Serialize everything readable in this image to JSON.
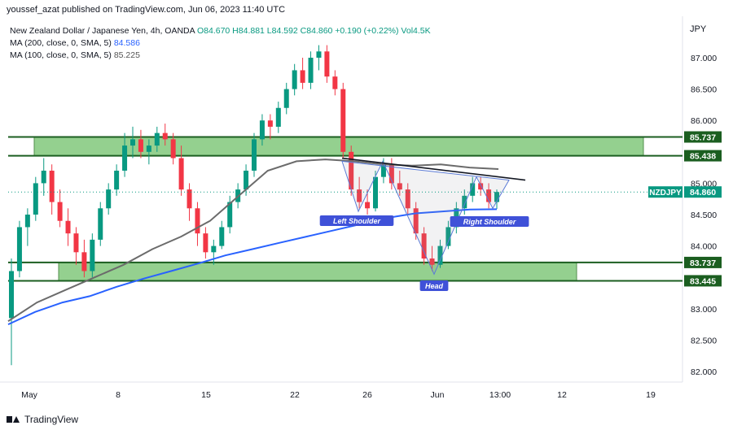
{
  "header": {
    "publisher_line": "youssef_azat published on TradingView.com, Jun 06, 2023 11:40 UTC"
  },
  "legend": {
    "symbol_line_prefix": "New Zealand Dollar / Japanese Yen, 4h, OANDA",
    "ohlc": "O84.670 H84.881 L84.592 C84.860 +0.190 (+0.22%) Vol4.5K",
    "ma200_label": "MA (200, close, 0, SMA, 5)",
    "ma200_value": "84.586",
    "ma100_label": "MA (100, close, 0, SMA, 5)",
    "ma100_value": "85.225"
  },
  "currency_label": "JPY",
  "footer": {
    "brand": "TradingView"
  },
  "chart_data": {
    "type": "candlestick",
    "ylim": [
      82.0,
      87.2
    ],
    "yticks": [
      "87.000",
      "86.500",
      "86.000",
      "85.000",
      "84.500",
      "84.000",
      "83.000",
      "82.500",
      "82.000"
    ],
    "xticks": [
      "May",
      "8",
      "15",
      "22",
      "26",
      "Jun",
      "13:00",
      "12",
      "19"
    ],
    "price_tags": [
      {
        "label": "85.737",
        "value": 85.737,
        "color": "#1b5e20"
      },
      {
        "label": "85.438",
        "value": 85.438,
        "color": "#1b5e20"
      },
      {
        "label": "84.860",
        "value": 84.86,
        "color": "#089981",
        "symbol": "NZDJPY"
      },
      {
        "label": "83.737",
        "value": 83.737,
        "color": "#1b5e20"
      },
      {
        "label": "83.445",
        "value": 83.445,
        "color": "#1b5e20"
      }
    ],
    "zones": [
      {
        "low": 85.438,
        "high": 85.737,
        "x_from": "May 3",
        "x_to": "Jun 20"
      },
      {
        "low": 83.445,
        "high": 83.737,
        "x_from": "May 5",
        "x_to": "Jun 13"
      }
    ],
    "pattern_labels": [
      "Left Shoulder",
      "Head",
      "Right Shoulder"
    ],
    "neckline": {
      "from": 85.4,
      "to": 85.05
    },
    "last_close": 84.86,
    "ma200": [
      82.75,
      82.95,
      83.1,
      83.2,
      83.35,
      83.48,
      83.6,
      83.72,
      83.85,
      83.95,
      84.05,
      84.15,
      84.25,
      84.35,
      84.45,
      84.52,
      84.55,
      84.58,
      84.586
    ],
    "ma100": [
      82.8,
      83.1,
      83.3,
      83.5,
      83.7,
      83.95,
      84.15,
      84.4,
      84.8,
      85.2,
      85.35,
      85.38,
      85.35,
      85.3,
      85.28,
      85.3,
      85.25,
      85.225
    ],
    "candles": [
      [
        82.85,
        83.8,
        82.1,
        83.6
      ],
      [
        83.6,
        84.4,
        83.5,
        84.3
      ],
      [
        84.3,
        84.6,
        84.0,
        84.5
      ],
      [
        84.5,
        85.1,
        84.4,
        85.0
      ],
      [
        85.0,
        85.4,
        84.8,
        85.2
      ],
      [
        85.2,
        85.3,
        84.5,
        84.7
      ],
      [
        84.7,
        84.9,
        84.3,
        84.4
      ],
      [
        84.4,
        84.6,
        84.0,
        84.2
      ],
      [
        84.2,
        84.3,
        83.7,
        83.9
      ],
      [
        83.9,
        84.1,
        83.5,
        83.6
      ],
      [
        83.6,
        84.2,
        83.5,
        84.1
      ],
      [
        84.1,
        84.7,
        84.0,
        84.6
      ],
      [
        84.6,
        85.0,
        84.5,
        84.9
      ],
      [
        84.9,
        85.3,
        84.8,
        85.2
      ],
      [
        85.2,
        85.8,
        85.1,
        85.6
      ],
      [
        85.6,
        85.9,
        85.4,
        85.7
      ],
      [
        85.7,
        85.85,
        85.4,
        85.5
      ],
      [
        85.5,
        85.7,
        85.3,
        85.6
      ],
      [
        85.6,
        85.9,
        85.5,
        85.8
      ],
      [
        85.8,
        85.95,
        85.6,
        85.7
      ],
      [
        85.7,
        85.8,
        85.3,
        85.4
      ],
      [
        85.4,
        85.6,
        84.8,
        84.9
      ],
      [
        84.9,
        85.0,
        84.4,
        84.6
      ],
      [
        84.6,
        84.7,
        84.0,
        84.2
      ],
      [
        84.2,
        84.3,
        83.8,
        83.9
      ],
      [
        83.9,
        84.1,
        83.7,
        84.0
      ],
      [
        84.0,
        84.4,
        83.95,
        84.3
      ],
      [
        84.3,
        84.8,
        84.2,
        84.7
      ],
      [
        84.7,
        85.0,
        84.6,
        84.9
      ],
      [
        84.9,
        85.3,
        84.8,
        85.2
      ],
      [
        85.2,
        85.8,
        85.1,
        85.7
      ],
      [
        85.7,
        86.1,
        85.6,
        86.0
      ],
      [
        86.0,
        86.1,
        85.7,
        85.9
      ],
      [
        85.9,
        86.3,
        85.8,
        86.2
      ],
      [
        86.2,
        86.6,
        86.1,
        86.5
      ],
      [
        86.5,
        86.9,
        86.4,
        86.8
      ],
      [
        86.8,
        87.0,
        86.5,
        86.6
      ],
      [
        86.6,
        87.1,
        86.5,
        87.0
      ],
      [
        87.0,
        87.2,
        86.8,
        87.1
      ],
      [
        87.1,
        87.2,
        86.6,
        86.7
      ],
      [
        86.7,
        86.8,
        86.4,
        86.5
      ],
      [
        86.5,
        86.6,
        85.4,
        85.5
      ],
      [
        85.5,
        85.6,
        84.8,
        84.9
      ],
      [
        84.9,
        85.1,
        84.6,
        84.7
      ],
      [
        84.7,
        84.9,
        84.5,
        84.6
      ],
      [
        84.6,
        85.2,
        84.55,
        85.1
      ],
      [
        85.1,
        85.4,
        85.0,
        85.3
      ],
      [
        85.3,
        85.4,
        84.9,
        85.0
      ],
      [
        85.0,
        85.2,
        84.8,
        84.9
      ],
      [
        84.9,
        85.0,
        84.5,
        84.6
      ],
      [
        84.6,
        84.7,
        84.1,
        84.2
      ],
      [
        84.2,
        84.3,
        83.7,
        83.8
      ],
      [
        83.8,
        84.0,
        83.6,
        83.7
      ],
      [
        83.7,
        84.1,
        83.65,
        84.0
      ],
      [
        84.0,
        84.4,
        83.95,
        84.3
      ],
      [
        84.3,
        84.7,
        84.2,
        84.6
      ],
      [
        84.6,
        84.9,
        84.5,
        84.8
      ],
      [
        84.8,
        85.1,
        84.7,
        85.0
      ],
      [
        85.0,
        85.1,
        84.8,
        84.9
      ],
      [
        84.9,
        85.0,
        84.6,
        84.7
      ],
      [
        84.7,
        84.9,
        84.59,
        84.86
      ]
    ]
  }
}
